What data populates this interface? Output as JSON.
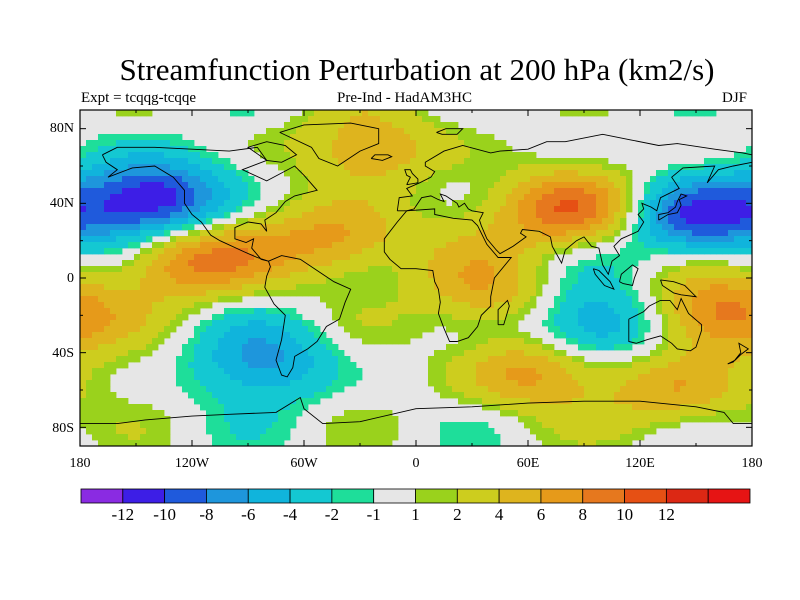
{
  "title": "Streamfunction Perturbation at 200 hPa (km2/s)",
  "subtitle_left": "Expt = tcqqg-tcqqe",
  "subtitle_center": "Pre-Ind - HadAM3HC",
  "subtitle_right": "DJF",
  "y_ticks": [
    "80N",
    "40N",
    "0",
    "40S",
    "80S"
  ],
  "x_ticks": [
    "180",
    "120W",
    "60W",
    "0",
    "60E",
    "120E",
    "180"
  ],
  "colorbar": {
    "colors": [
      "#8a2be2",
      "#3d1ee6",
      "#1f5adc",
      "#1e96dc",
      "#10b4dc",
      "#14c8d2",
      "#1ede9a",
      "#e6e6e6",
      "#9ad21c",
      "#cdcd1e",
      "#deb41e",
      "#e69a1a",
      "#e6781e",
      "#e65014",
      "#dc2814",
      "#e61414"
    ],
    "labels": [
      "-12",
      "-10",
      "-8",
      "-6",
      "-4",
      "-2",
      "-1",
      "1",
      "2",
      "4",
      "6",
      "8",
      "10",
      "12"
    ]
  },
  "chart_data": {
    "type": "heatmap",
    "title": "Streamfunction Perturbation at 200 hPa (km2/s)",
    "x_range": [
      -180,
      180
    ],
    "y_range": [
      -90,
      90
    ],
    "levels": [
      -12,
      -10,
      -8,
      -6,
      -4,
      -2,
      -1,
      1,
      2,
      4,
      6,
      8,
      10,
      12
    ],
    "anomaly_centers": [
      {
        "lon": -140,
        "lat": 42,
        "value": -12
      },
      {
        "lon": 150,
        "lat": 32,
        "value": -12
      },
      {
        "lon": 85,
        "lat": 36,
        "value": 11
      },
      {
        "lon": -125,
        "lat": 10,
        "value": 9
      },
      {
        "lon": -40,
        "lat": 20,
        "value": 8
      },
      {
        "lon": 160,
        "lat": -20,
        "value": 10
      },
      {
        "lon": 95,
        "lat": -25,
        "value": -9
      },
      {
        "lon": -80,
        "lat": -45,
        "value": -6
      },
      {
        "lon": 60,
        "lat": -50,
        "value": 7
      },
      {
        "lon": 140,
        "lat": -60,
        "value": 6
      },
      {
        "lon": -25,
        "lat": 70,
        "value": 6
      },
      {
        "lon": 40,
        "lat": -10,
        "value": 6
      }
    ]
  }
}
